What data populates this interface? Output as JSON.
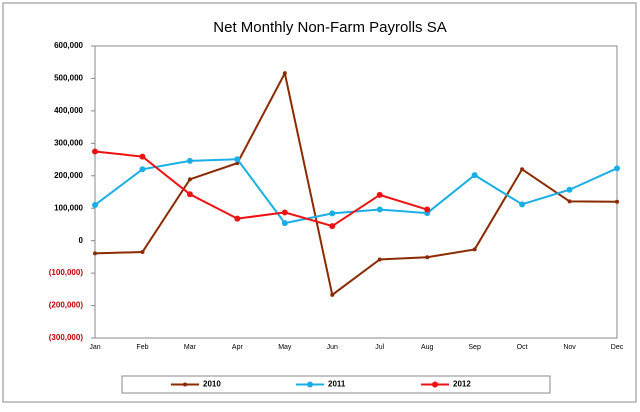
{
  "chart_data": {
    "type": "line",
    "title": "Net Monthly Non-Farm Payrolls SA",
    "categories": [
      "Jan",
      "Feb",
      "Mar",
      "Apr",
      "May",
      "Jun",
      "Jul",
      "Aug",
      "Sep",
      "Oct",
      "Nov",
      "Dec"
    ],
    "series": [
      {
        "name": "2010",
        "color": "#8b2a00",
        "values": [
          -39000,
          -35000,
          189000,
          239000,
          516000,
          -167000,
          -58000,
          -51000,
          -27000,
          220000,
          121000,
          120000
        ]
      },
      {
        "name": "2011",
        "color": "#1aaee6",
        "values": [
          110000,
          220000,
          246000,
          251000,
          54000,
          84000,
          96000,
          85000,
          202000,
          112000,
          157000,
          223000
        ]
      },
      {
        "name": "2012",
        "color": "#ee1111",
        "values": [
          275000,
          259000,
          143000,
          68000,
          87000,
          45000,
          141000,
          96000,
          null,
          null,
          null,
          null
        ]
      }
    ],
    "ylim": [
      -300000,
      600000
    ],
    "yticks": [
      {
        "value": -300000,
        "label": "(300,000)"
      },
      {
        "value": -200000,
        "label": "(200,000)"
      },
      {
        "value": -100000,
        "label": "(100,000)"
      },
      0,
      {
        "value": 100000,
        "label": "100,000"
      },
      {
        "value": 200000,
        "label": "200,000"
      },
      {
        "value": 300000,
        "label": "300,000"
      },
      {
        "value": 400000,
        "label": "400,000"
      },
      {
        "value": 500000,
        "label": "500,000"
      },
      {
        "value": 600000,
        "label": "600,000"
      }
    ],
    "negative_label_color": "#c00000",
    "grid": false,
    "legend": "bottom"
  }
}
